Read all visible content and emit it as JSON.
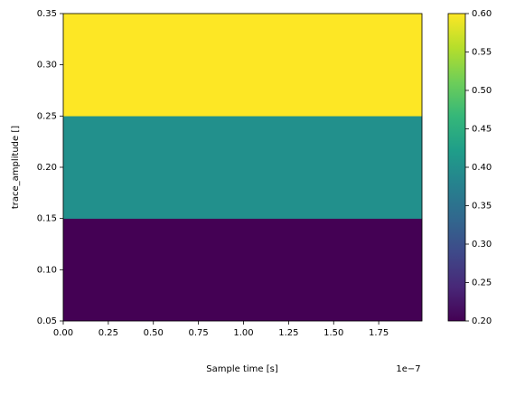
{
  "chart_data": {
    "type": "heatmap",
    "xlabel": "Sample time [s]",
    "ylabel": "trace_amplitude []",
    "x_offset_label": "1e−7",
    "x_edges": [
      0,
      1.99e-07
    ],
    "y_edges": [
      0.05,
      0.15,
      0.25,
      0.35
    ],
    "values": [
      [
        0.2
      ],
      [
        0.4
      ],
      [
        0.6
      ]
    ],
    "colormap": "viridis",
    "clim": [
      0.2,
      0.6
    ],
    "xlim": [
      0,
      1.99e-07
    ],
    "ylim": [
      0.05,
      0.35
    ],
    "xticks": [
      {
        "value": 0,
        "label": "0.00"
      },
      {
        "value": 2.5e-08,
        "label": "0.25"
      },
      {
        "value": 5e-08,
        "label": "0.50"
      },
      {
        "value": 7.5e-08,
        "label": "0.75"
      },
      {
        "value": 1e-07,
        "label": "1.00"
      },
      {
        "value": 1.25e-07,
        "label": "1.25"
      },
      {
        "value": 1.5e-07,
        "label": "1.50"
      },
      {
        "value": 1.75e-07,
        "label": "1.75"
      }
    ],
    "yticks": [
      0.05,
      {
        "value": 0.1,
        "label": "0.10"
      },
      0.15,
      {
        "value": 0.2,
        "label": "0.20"
      },
      0.25,
      {
        "value": 0.3,
        "label": "0.30"
      },
      0.35
    ],
    "cticks": [
      {
        "value": 0.2,
        "label": "0.20"
      },
      0.25,
      {
        "value": 0.3,
        "label": "0.30"
      },
      0.35,
      {
        "value": 0.4,
        "label": "0.40"
      },
      0.45,
      {
        "value": 0.5,
        "label": "0.50"
      },
      0.55,
      {
        "value": 0.6,
        "label": "0.60"
      }
    ]
  }
}
